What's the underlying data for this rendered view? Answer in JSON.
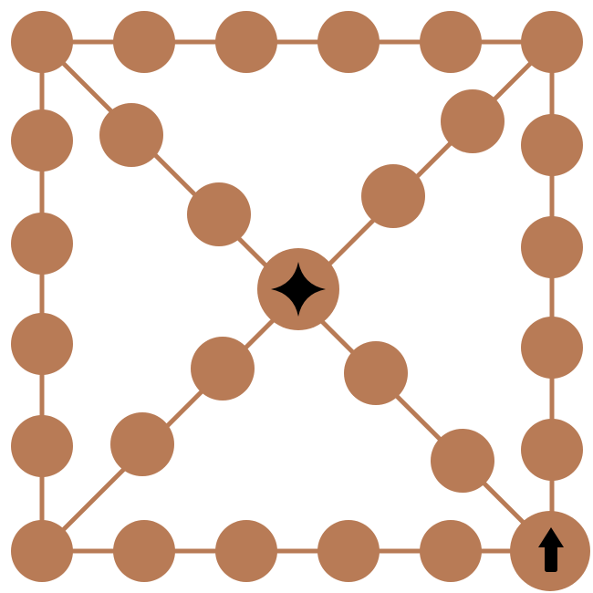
{
  "board": {
    "node_color": "#b87b56",
    "line_color": "#b87b56",
    "background": "#ffffff",
    "center_marker": {
      "icon": "four-point-star-icon",
      "color": "#000000"
    },
    "start_marker": {
      "icon": "up-arrow-icon",
      "color": "#000000"
    }
  }
}
